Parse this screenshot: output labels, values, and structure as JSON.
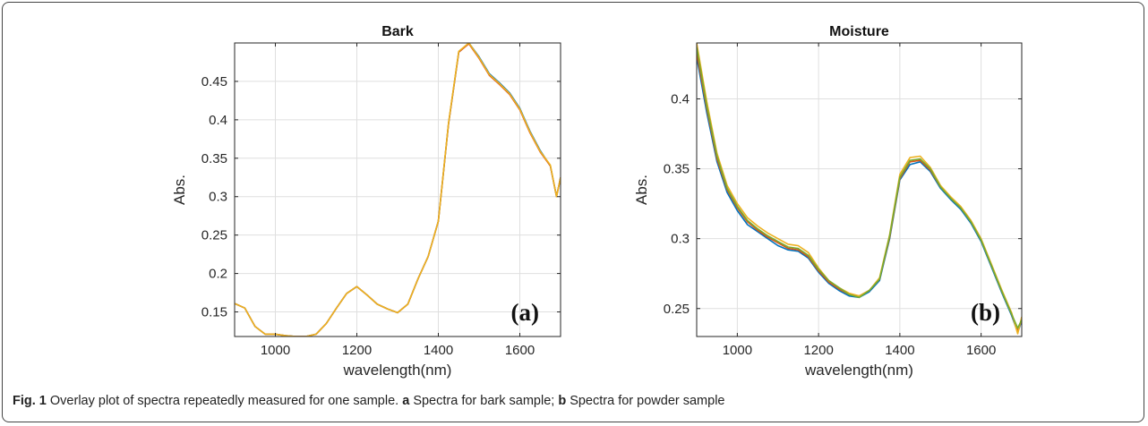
{
  "caption": {
    "fig_label": "Fig. 1",
    "text_1": " Overlay plot of spectra repeatedly measured for one sample. ",
    "part_a": "a",
    "text_2": " Spectra for bark sample; ",
    "part_b": "b",
    "text_3": " Spectra for powder sample"
  },
  "colors": {
    "series_1": "#0072BD",
    "series_2": "#D95319",
    "series_3": "#EDB120",
    "series_4": "#77AC30"
  },
  "chart_data": [
    {
      "type": "line",
      "title": "Bark",
      "xlabel": "wavelength(nm)",
      "ylabel": "Abs.",
      "panel_label": "(a)",
      "xlim": [
        900,
        1700
      ],
      "ylim": [
        0.118,
        0.5
      ],
      "grid": true,
      "xticks": [
        {
          "v": 1000,
          "label": "1000"
        },
        {
          "v": 1200,
          "label": "1200"
        },
        {
          "v": 1400,
          "label": "1400"
        },
        {
          "v": 1600,
          "label": "1600"
        }
      ],
      "yticks": [
        {
          "v": 0.15,
          "label": "0.15"
        },
        {
          "v": 0.2,
          "label": "0.2"
        },
        {
          "v": 0.25,
          "label": "0.25"
        },
        {
          "v": 0.3,
          "label": "0.3"
        },
        {
          "v": 0.35,
          "label": "0.35"
        },
        {
          "v": 0.4,
          "label": "0.4"
        },
        {
          "v": 0.45,
          "label": "0.45"
        }
      ],
      "x": [
        900,
        925,
        950,
        975,
        1000,
        1025,
        1050,
        1075,
        1100,
        1125,
        1150,
        1175,
        1200,
        1225,
        1250,
        1275,
        1300,
        1325,
        1350,
        1375,
        1400,
        1425,
        1450,
        1475,
        1500,
        1525,
        1550,
        1575,
        1600,
        1625,
        1650,
        1675,
        1690,
        1700
      ],
      "series": [
        {
          "values": [
            0.161,
            0.155,
            0.131,
            0.121,
            0.121,
            0.119,
            0.118,
            0.118,
            0.121,
            0.135,
            0.155,
            0.174,
            0.183,
            0.172,
            0.16,
            0.154,
            0.149,
            0.16,
            0.193,
            0.222,
            0.268,
            0.395,
            0.488,
            0.5,
            0.482,
            0.46,
            0.448,
            0.435,
            0.415,
            0.385,
            0.36,
            0.34,
            0.3,
            0.325
          ]
        },
        {
          "values": [
            0.161,
            0.155,
            0.131,
            0.121,
            0.121,
            0.119,
            0.118,
            0.118,
            0.121,
            0.135,
            0.155,
            0.174,
            0.183,
            0.172,
            0.16,
            0.154,
            0.149,
            0.16,
            0.193,
            0.222,
            0.268,
            0.395,
            0.488,
            0.499,
            0.48,
            0.458,
            0.446,
            0.433,
            0.413,
            0.383,
            0.358,
            0.34,
            0.3,
            0.325
          ]
        },
        {
          "values": [
            0.161,
            0.155,
            0.131,
            0.121,
            0.121,
            0.119,
            0.118,
            0.118,
            0.121,
            0.135,
            0.155,
            0.174,
            0.183,
            0.172,
            0.16,
            0.154,
            0.149,
            0.16,
            0.193,
            0.222,
            0.268,
            0.396,
            0.489,
            0.5,
            0.481,
            0.459,
            0.447,
            0.434,
            0.414,
            0.384,
            0.359,
            0.341,
            0.3,
            0.325
          ]
        }
      ]
    },
    {
      "type": "line",
      "title": "Moisture",
      "xlabel": "wavelength(nm)",
      "ylabel": "Abs.",
      "panel_label": "(b)",
      "xlim": [
        900,
        1700
      ],
      "ylim": [
        0.23,
        0.44
      ],
      "grid": true,
      "xticks": [
        {
          "v": 1000,
          "label": "1000"
        },
        {
          "v": 1200,
          "label": "1200"
        },
        {
          "v": 1400,
          "label": "1400"
        },
        {
          "v": 1600,
          "label": "1600"
        }
      ],
      "yticks": [
        {
          "v": 0.25,
          "label": "0.25"
        },
        {
          "v": 0.3,
          "label": "0.3"
        },
        {
          "v": 0.35,
          "label": "0.35"
        },
        {
          "v": 0.4,
          "label": "0.4"
        }
      ],
      "x": [
        900,
        925,
        950,
        975,
        1000,
        1025,
        1050,
        1075,
        1100,
        1125,
        1150,
        1175,
        1200,
        1225,
        1250,
        1275,
        1300,
        1325,
        1350,
        1375,
        1400,
        1425,
        1450,
        1475,
        1500,
        1525,
        1550,
        1575,
        1600,
        1625,
        1650,
        1675,
        1690,
        1700
      ],
      "series": [
        {
          "values": [
            0.43,
            0.39,
            0.355,
            0.333,
            0.32,
            0.31,
            0.305,
            0.3,
            0.295,
            0.292,
            0.291,
            0.286,
            0.276,
            0.268,
            0.263,
            0.259,
            0.258,
            0.262,
            0.27,
            0.3,
            0.342,
            0.353,
            0.355,
            0.348,
            0.336,
            0.328,
            0.321,
            0.311,
            0.298,
            0.28,
            0.262,
            0.245,
            0.233,
            0.241
          ]
        },
        {
          "values": [
            0.433,
            0.393,
            0.357,
            0.335,
            0.322,
            0.312,
            0.306,
            0.301,
            0.297,
            0.293,
            0.292,
            0.287,
            0.277,
            0.269,
            0.264,
            0.26,
            0.259,
            0.263,
            0.271,
            0.301,
            0.343,
            0.355,
            0.356,
            0.349,
            0.337,
            0.329,
            0.322,
            0.312,
            0.299,
            0.281,
            0.263,
            0.246,
            0.234,
            0.242
          ]
        },
        {
          "values": [
            0.44,
            0.398,
            0.361,
            0.338,
            0.325,
            0.315,
            0.309,
            0.304,
            0.3,
            0.296,
            0.295,
            0.29,
            0.279,
            0.27,
            0.265,
            0.261,
            0.259,
            0.263,
            0.272,
            0.303,
            0.346,
            0.358,
            0.359,
            0.351,
            0.338,
            0.33,
            0.323,
            0.313,
            0.3,
            0.282,
            0.264,
            0.247,
            0.232,
            0.244
          ]
        },
        {
          "values": [
            0.437,
            0.395,
            0.359,
            0.336,
            0.323,
            0.313,
            0.307,
            0.302,
            0.298,
            0.294,
            0.293,
            0.288,
            0.278,
            0.27,
            0.265,
            0.26,
            0.258,
            0.263,
            0.271,
            0.302,
            0.344,
            0.356,
            0.357,
            0.35,
            0.337,
            0.329,
            0.322,
            0.312,
            0.299,
            0.281,
            0.263,
            0.246,
            0.236,
            0.242
          ]
        }
      ]
    }
  ]
}
